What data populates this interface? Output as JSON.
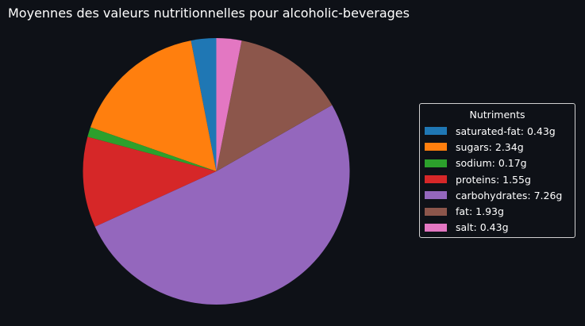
{
  "chart_data": {
    "type": "pie",
    "title": "Moyennes des valeurs nutritionnelles pour alcoholic-beverages",
    "legend_title": "Nutriments",
    "legend_position": "right",
    "start_angle_deg": 90,
    "direction": "counterclockwise",
    "unit": "g",
    "slices": [
      {
        "name": "saturated-fat",
        "value": 0.43,
        "color": "#1f77b4",
        "label": "saturated-fat: 0.43g"
      },
      {
        "name": "sugars",
        "value": 2.34,
        "color": "#ff7f0e",
        "label": "sugars: 2.34g"
      },
      {
        "name": "sodium",
        "value": 0.17,
        "color": "#2ca02c",
        "label": "sodium: 0.17g"
      },
      {
        "name": "proteins",
        "value": 1.55,
        "color": "#d62728",
        "label": "proteins: 1.55g"
      },
      {
        "name": "carbohydrates",
        "value": 7.26,
        "color": "#9467bd",
        "label": "carbohydrates: 7.26g"
      },
      {
        "name": "fat",
        "value": 1.93,
        "color": "#8c564b",
        "label": "fat: 1.93g"
      },
      {
        "name": "salt",
        "value": 0.43,
        "color": "#e377c2",
        "label": "salt: 0.43g"
      }
    ]
  }
}
